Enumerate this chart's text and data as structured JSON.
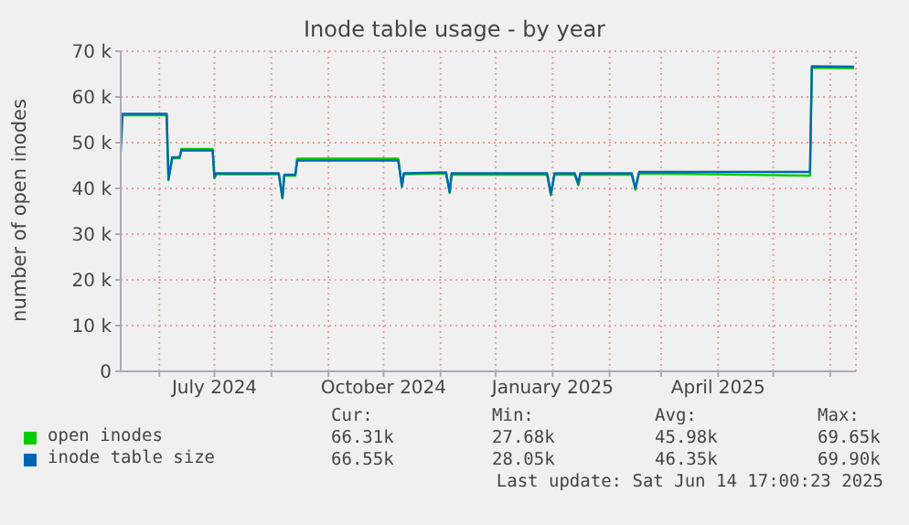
{
  "chart_data": {
    "type": "line",
    "title": "Inode table usage - by year",
    "ylabel": "number of open inodes",
    "x": [
      "2024-05-11",
      "2024-05-12",
      "2024-06-05",
      "2024-06-06",
      "2024-06-08",
      "2024-06-12",
      "2024-06-13",
      "2024-06-30",
      "2024-07-01",
      "2024-07-02",
      "2024-08-05",
      "2024-08-07",
      "2024-08-08",
      "2024-08-14",
      "2024-08-15",
      "2024-10-09",
      "2024-10-11",
      "2024-10-12",
      "2024-11-04",
      "2024-11-06",
      "2024-11-07",
      "2024-12-29",
      "2024-12-31",
      "2025-01-02",
      "2025-01-13",
      "2025-01-15",
      "2025-01-16",
      "2025-02-13",
      "2025-02-15",
      "2025-02-17",
      "2025-05-19",
      "2025-05-21",
      "2025-05-22",
      "2025-06-14"
    ],
    "series": [
      {
        "name": "open inodes",
        "color": "#00cc00",
        "values": [
          null,
          56000,
          56000,
          41800,
          46600,
          46600,
          48600,
          48600,
          42200,
          43100,
          43100,
          37800,
          42800,
          42800,
          46500,
          46500,
          40300,
          43100,
          43300,
          39000,
          43000,
          43000,
          38500,
          43000,
          43000,
          40700,
          43000,
          43000,
          39700,
          43300,
          42800,
          42800,
          66400,
          66300
        ]
      },
      {
        "name": "inode table size",
        "color": "#0066b3",
        "values": [
          48000,
          56300,
          56300,
          42000,
          46800,
          46800,
          48300,
          48300,
          42500,
          43300,
          43300,
          38000,
          43000,
          43000,
          46100,
          46100,
          40500,
          43300,
          43500,
          39200,
          43300,
          43300,
          38800,
          43300,
          43300,
          41000,
          43300,
          43300,
          40000,
          43600,
          43600,
          43600,
          66700,
          66600
        ]
      }
    ],
    "xlim": [
      "2024-05-11",
      "2025-06-15"
    ],
    "xticks": [
      {
        "value": "2024-06-01",
        "label": null
      },
      {
        "value": "2024-07-01",
        "label": "July 2024"
      },
      {
        "value": "2024-08-01",
        "label": null
      },
      {
        "value": "2024-09-01",
        "label": null
      },
      {
        "value": "2024-10-01",
        "label": "October 2024"
      },
      {
        "value": "2024-11-01",
        "label": null
      },
      {
        "value": "2024-12-01",
        "label": null
      },
      {
        "value": "2025-01-01",
        "label": "January 2025"
      },
      {
        "value": "2025-02-01",
        "label": null
      },
      {
        "value": "2025-03-01",
        "label": null
      },
      {
        "value": "2025-04-01",
        "label": "April 2025"
      },
      {
        "value": "2025-05-01",
        "label": null
      },
      {
        "value": "2025-06-01",
        "label": null
      }
    ],
    "ylim": [
      0,
      70000
    ],
    "yticks": [
      0,
      {
        "value": 10000,
        "label": "10 k"
      },
      {
        "value": 20000,
        "label": "20 k"
      },
      {
        "value": 30000,
        "label": "30 k"
      },
      {
        "value": 40000,
        "label": "40 k"
      },
      {
        "value": 50000,
        "label": "50 k"
      },
      {
        "value": 60000,
        "label": "60 k"
      },
      {
        "value": 70000,
        "label": "70 k"
      }
    ],
    "grid": true,
    "legend": "bottom",
    "annotations": [
      "Cur:",
      "Min:",
      "Avg:",
      "Max:",
      "66.31k",
      "27.68k",
      "45.98k",
      "69.65k",
      "66.55k",
      "28.05k",
      "46.35k",
      "69.90k",
      "Last update: Sat Jun 14 17:00:23 2025"
    ]
  }
}
